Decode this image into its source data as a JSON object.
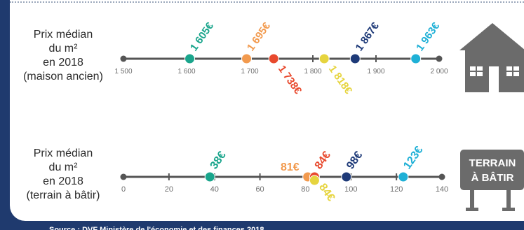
{
  "colors": {
    "background": "#1f3a6e",
    "panel": "#ffffff",
    "axis": "#555555",
    "tick_label": "#6d6d6d",
    "icon_gray": "#6b6b6b"
  },
  "rows": [
    {
      "label_lines": [
        "Prix médian",
        "du m²",
        "en 2018",
        "(maison ancien)"
      ]
    },
    {
      "label_lines": [
        "Prix médian",
        "du m²",
        "en 2018",
        "(terrain à bâtir)"
      ]
    }
  ],
  "house_icon": {
    "name": "house-icon"
  },
  "terrain_sign": {
    "lines": [
      "TERRAIN",
      "À BÂTIR"
    ]
  },
  "source_text": "Source : DVF Ministère de l'économie et des finances 2018",
  "chart_data": [
    {
      "type": "scatter",
      "name_id": "maison-ancien",
      "xlim": [
        1500,
        2000
      ],
      "ticks": [
        1500,
        1600,
        1700,
        1800,
        1900,
        2000
      ],
      "tick_labels": [
        "1 500",
        "1 600",
        "1 700",
        "1 800",
        "1 900",
        "2 000"
      ],
      "points": [
        {
          "value": 1605,
          "label": "1 605€",
          "color": "#1aa58c",
          "label_pos": "above"
        },
        {
          "value": 1695,
          "label": "1 695€",
          "color": "#f29a4e",
          "label_pos": "above"
        },
        {
          "value": 1738,
          "label": "1 738€",
          "color": "#e8492d",
          "label_pos": "below"
        },
        {
          "value": 1818,
          "label": "1 818€",
          "color": "#e6d43e",
          "label_pos": "below"
        },
        {
          "value": 1867,
          "label": "1 867€",
          "color": "#1e3a78",
          "label_pos": "above"
        },
        {
          "value": 1963,
          "label": "1 963€",
          "color": "#1fb0d6",
          "label_pos": "above"
        }
      ]
    },
    {
      "type": "scatter",
      "name_id": "terrain-a-batir",
      "xlim": [
        0,
        140
      ],
      "ticks": [
        0,
        20,
        40,
        60,
        80,
        100,
        120,
        140
      ],
      "tick_labels": [
        "0",
        "20",
        "40",
        "60",
        "80",
        "100",
        "120",
        "140"
      ],
      "points": [
        {
          "value": 38,
          "label": "38€",
          "color": "#1aa58c",
          "label_pos": "above"
        },
        {
          "value": 81,
          "label": "81€",
          "color": "#f29a4e",
          "label_pos": "left"
        },
        {
          "value": 84,
          "label": "84€",
          "color": "#e8492d",
          "label_pos": "above"
        },
        {
          "value": 84,
          "label": "84€",
          "color": "#e6d43e",
          "label_pos": "below"
        },
        {
          "value": 98,
          "label": "98€",
          "color": "#1e3a78",
          "label_pos": "above"
        },
        {
          "value": 123,
          "label": "123€",
          "color": "#1fb0d6",
          "label_pos": "above"
        }
      ]
    }
  ]
}
